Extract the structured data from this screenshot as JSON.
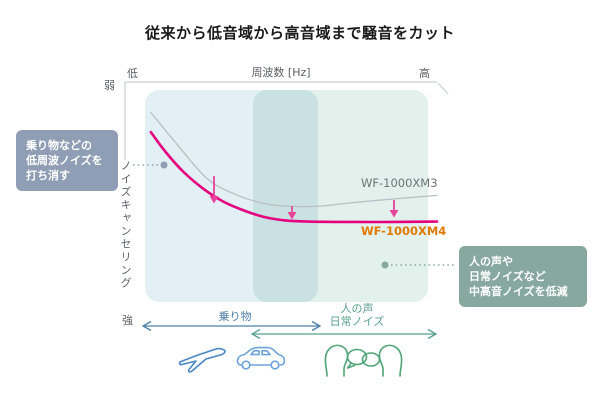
{
  "title": "従来から低音域から高音域まで騒音をカット",
  "axes": {
    "x": {
      "title": "周波数 [Hz]",
      "left_label": "低",
      "right_label": "高"
    },
    "y": {
      "title": "ノイズキャンセリング",
      "top_label": "弱",
      "bottom_label": "強"
    }
  },
  "series_labels": {
    "xm3": "WF-1000XM3",
    "xm4": "WF-1000XM4"
  },
  "callouts": {
    "left": {
      "lines": [
        "乗り物などの",
        "低周波ノイズを",
        "打ち消す"
      ]
    },
    "right": {
      "lines": [
        "人の声や",
        "日常ノイズなど",
        "中高音ノイズを低減"
      ]
    }
  },
  "ranges": {
    "vehicle": {
      "label": "乗り物"
    },
    "voice": {
      "lines": [
        "人の声",
        "日常ノイズ"
      ]
    }
  },
  "icons": [
    "airplane-icon",
    "car-icon",
    "people-talking-icon"
  ],
  "colors": {
    "text_dark": "#1a1a1a",
    "axis_text": "#5a6065",
    "axis_line": "#c9ced2",
    "accent_magenta": "#e4007f",
    "xm3_curve": "#b9bec2",
    "xm3_label_text": "#6b7478",
    "xm4_label_text": "#e07a00",
    "improvement_arrow": "#e8439b",
    "region_vehicle": "#e2eff5",
    "region_voice": "#e3f1ec",
    "callout_left_bg": "#8f9eb4",
    "callout_right_bg": "#87a89e",
    "connector_left": "#8f9eb4",
    "connector_right": "#87a89e",
    "range_vehicle": "#4d7fa8",
    "range_voice": "#58a188",
    "icon_plane": "#4a87c4",
    "icon_car": "#6da3dc",
    "icon_people": "#4fa578"
  },
  "chart_data": {
    "type": "line",
    "title": "従来から低音域から高音域まで騒音をカット",
    "xlabel": "周波数 [Hz]",
    "ylabel": "ノイズキャンセリング",
    "x_axis": {
      "range_labels": [
        "低",
        "高"
      ],
      "numeric_ticks": false
    },
    "y_axis": {
      "range_labels": [
        "弱",
        "強"
      ],
      "numeric_ticks": false,
      "note": "弱 at top, 強 at bottom; lower curve position = stronger noise canceling"
    },
    "units": "normalized 0-100 (x: low→high frequency, y: noise-canceling strength weak→strong)",
    "legend": "inline labels next to curves",
    "grid": false,
    "series": [
      {
        "name": "WF-1000XM3",
        "color": "#b9bec2",
        "width": 1.3,
        "points": [
          [
            2,
            14
          ],
          [
            10,
            27
          ],
          [
            21,
            44
          ],
          [
            30,
            51
          ],
          [
            40,
            55.5
          ],
          [
            49,
            57
          ],
          [
            59,
            57
          ],
          [
            70,
            55.5
          ],
          [
            82,
            54
          ],
          [
            100,
            52
          ]
        ]
      },
      {
        "name": "WF-1000XM4",
        "color": "#e4007f",
        "width": 2.6,
        "points": [
          [
            2,
            23
          ],
          [
            7,
            32
          ],
          [
            13,
            41
          ],
          [
            20,
            49
          ],
          [
            27,
            55
          ],
          [
            34,
            59
          ],
          [
            41,
            62
          ],
          [
            48,
            63.5
          ],
          [
            56,
            64
          ],
          [
            70,
            64.2
          ],
          [
            85,
            64.2
          ],
          [
            100,
            64
          ]
        ]
      }
    ],
    "improvement_arrows_x_percent": [
      23.6,
      50.3,
      85.3
    ],
    "shaded_ranges": [
      {
        "label": "乗り物",
        "x_percent": [
          0,
          59
        ],
        "color": "#e2eff5"
      },
      {
        "label": "人の声 日常ノイズ",
        "x_percent": [
          37,
          97
        ],
        "color": "#e3f1ec"
      }
    ]
  }
}
